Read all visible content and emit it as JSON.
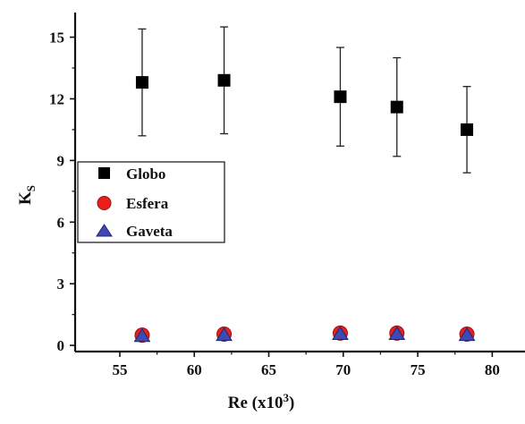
{
  "chart_data": {
    "type": "scatter",
    "title": "",
    "xlabel": "Re (x10",
    "xlabel_sup": "3",
    "xlabel_close": ")",
    "ylabel": "K",
    "ylabel_sub": "S",
    "xlim": [
      52,
      82.2
    ],
    "ylim": [
      -0.3,
      16.2
    ],
    "xticks": [
      55,
      60,
      65,
      70,
      75,
      80
    ],
    "yticks": [
      0,
      3,
      6,
      9,
      12,
      15
    ],
    "grid": false,
    "legend_position": "middle-left",
    "series": [
      {
        "name": "Globo",
        "marker": "square",
        "color": "#000000",
        "x": [
          56.5,
          62.0,
          69.8,
          73.6,
          78.3
        ],
        "y": [
          12.8,
          12.9,
          12.1,
          11.6,
          10.5
        ],
        "err": [
          2.6,
          2.6,
          2.4,
          2.4,
          2.1
        ]
      },
      {
        "name": "Esfera",
        "marker": "circle",
        "color": "#e8201c",
        "x": [
          56.5,
          62.0,
          69.8,
          73.6,
          78.3
        ],
        "y": [
          0.5,
          0.55,
          0.6,
          0.6,
          0.55
        ]
      },
      {
        "name": "Gaveta",
        "marker": "triangle",
        "color": "#3e49b3",
        "x": [
          56.5,
          62.0,
          69.8,
          73.6,
          78.3
        ],
        "y": [
          0.45,
          0.5,
          0.55,
          0.55,
          0.5
        ]
      }
    ]
  }
}
